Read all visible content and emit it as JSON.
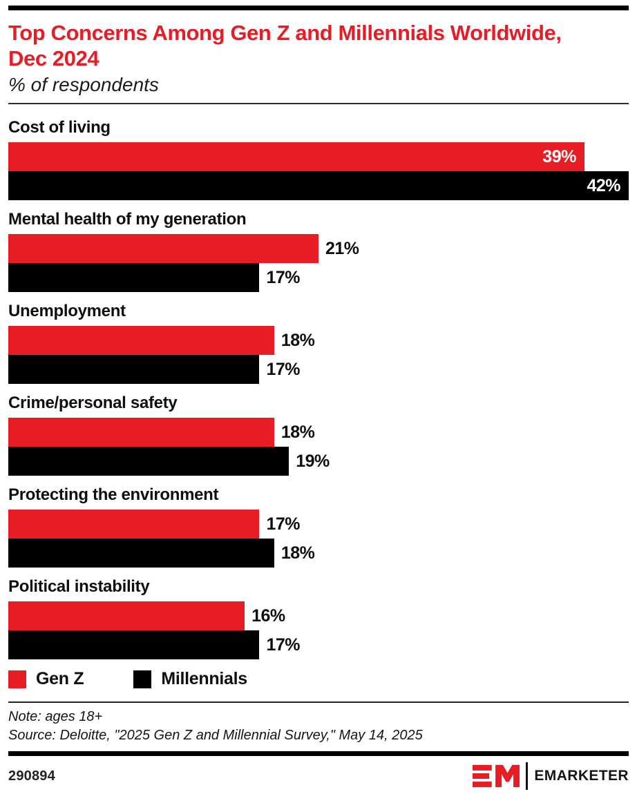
{
  "header": {
    "title": "Top Concerns Among Gen Z and Millennials Worldwide, Dec 2024",
    "subtitle": "% of respondents"
  },
  "chart_data": {
    "type": "bar",
    "orientation": "horizontal",
    "title": "Top Concerns Among Gen Z and Millennials Worldwide, Dec 2024",
    "subtitle": "% of respondents",
    "categories": [
      "Cost of living",
      "Mental health of my generation",
      "Unemployment",
      "Crime/personal safety",
      "Protecting the environment",
      "Political instability"
    ],
    "series": [
      {
        "name": "Gen Z",
        "color": "#e81c25",
        "values": [
          39,
          21,
          18,
          18,
          17,
          16
        ]
      },
      {
        "name": "Millennials",
        "color": "#000000",
        "values": [
          42,
          17,
          17,
          19,
          18,
          17
        ]
      }
    ],
    "value_suffix": "%",
    "xlim": [
      0,
      42
    ],
    "grid": false,
    "legend_position": "bottom",
    "inside_label_min": 30
  },
  "legend": {
    "items": [
      {
        "label": "Gen Z",
        "color": "#e81c25"
      },
      {
        "label": "Millennials",
        "color": "#000000"
      }
    ]
  },
  "footer": {
    "note": "Note: ages 18+",
    "source": "Source: Deloitte, \"2025 Gen Z and Millennial Survey,\" May 14, 2025",
    "chart_id": "290894",
    "brand": "EMARKETER"
  },
  "colors": {
    "accent_red": "#e81c25",
    "bar_black": "#000000",
    "inside_value_text": "#ffffff"
  }
}
